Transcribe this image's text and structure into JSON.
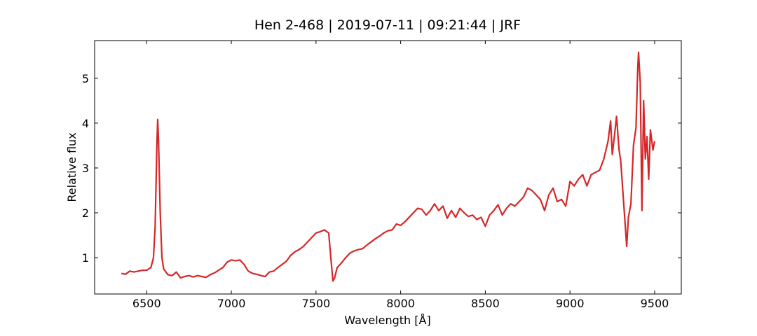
{
  "chart_data": {
    "type": "line",
    "title": "Hen 2-468 | 2019-07-11 | 09:21:44 | JRF",
    "xlabel": "Wavelength [Å]",
    "ylabel": "Relative flux",
    "xlim": [
      6192.5,
      9657.5
    ],
    "ylim": [
      0.19,
      5.84
    ],
    "xticks": [
      6500,
      7000,
      7500,
      8000,
      8500,
      9000,
      9500
    ],
    "yticks": [
      1,
      2,
      3,
      4,
      5
    ],
    "x": [
      6350,
      6375,
      6400,
      6425,
      6450,
      6475,
      6500,
      6525,
      6540,
      6550,
      6560,
      6565,
      6570,
      6580,
      6590,
      6600,
      6625,
      6650,
      6675,
      6700,
      6725,
      6750,
      6775,
      6800,
      6825,
      6850,
      6875,
      6900,
      6925,
      6950,
      6975,
      7000,
      7025,
      7050,
      7075,
      7100,
      7125,
      7150,
      7175,
      7200,
      7225,
      7250,
      7275,
      7300,
      7325,
      7350,
      7375,
      7400,
      7425,
      7450,
      7475,
      7500,
      7525,
      7550,
      7575,
      7590,
      7600,
      7610,
      7625,
      7650,
      7675,
      7700,
      7725,
      7750,
      7775,
      7800,
      7825,
      7850,
      7875,
      7900,
      7925,
      7950,
      7975,
      8000,
      8025,
      8050,
      8075,
      8100,
      8125,
      8150,
      8175,
      8200,
      8225,
      8250,
      8275,
      8300,
      8325,
      8350,
      8375,
      8400,
      8425,
      8450,
      8475,
      8500,
      8525,
      8550,
      8575,
      8600,
      8625,
      8650,
      8675,
      8700,
      8725,
      8750,
      8775,
      8800,
      8825,
      8850,
      8875,
      8900,
      8925,
      8950,
      8975,
      9000,
      9025,
      9050,
      9075,
      9100,
      9125,
      9150,
      9175,
      9200,
      9225,
      9240,
      9250,
      9265,
      9275,
      9290,
      9300,
      9310,
      9325,
      9335,
      9345,
      9360,
      9375,
      9390,
      9400,
      9405,
      9415,
      9425,
      9435,
      9445,
      9455,
      9465,
      9475,
      9490,
      9500
    ],
    "series": [
      {
        "color": "#d62728",
        "values": [
          0.65,
          0.63,
          0.7,
          0.68,
          0.7,
          0.72,
          0.72,
          0.78,
          1.0,
          1.7,
          3.5,
          4.08,
          3.6,
          2.0,
          1.0,
          0.75,
          0.62,
          0.6,
          0.68,
          0.55,
          0.58,
          0.6,
          0.57,
          0.6,
          0.58,
          0.56,
          0.62,
          0.66,
          0.72,
          0.78,
          0.9,
          0.95,
          0.93,
          0.95,
          0.85,
          0.7,
          0.65,
          0.63,
          0.6,
          0.58,
          0.68,
          0.7,
          0.78,
          0.85,
          0.92,
          1.05,
          1.13,
          1.18,
          1.25,
          1.35,
          1.45,
          1.55,
          1.58,
          1.62,
          1.55,
          0.9,
          0.48,
          0.55,
          0.78,
          0.88,
          1.0,
          1.1,
          1.15,
          1.18,
          1.2,
          1.28,
          1.35,
          1.42,
          1.48,
          1.55,
          1.6,
          1.62,
          1.75,
          1.72,
          1.8,
          1.9,
          2.0,
          2.1,
          2.08,
          1.95,
          2.05,
          2.2,
          2.05,
          2.15,
          1.88,
          2.05,
          1.9,
          2.1,
          2.0,
          1.92,
          1.95,
          1.85,
          1.9,
          1.7,
          1.95,
          2.05,
          2.18,
          1.95,
          2.1,
          2.2,
          2.15,
          2.25,
          2.35,
          2.55,
          2.5,
          2.4,
          2.3,
          2.05,
          2.4,
          2.55,
          2.25,
          2.3,
          2.15,
          2.7,
          2.6,
          2.75,
          2.85,
          2.6,
          2.85,
          2.9,
          2.95,
          3.2,
          3.6,
          4.05,
          3.3,
          3.8,
          4.15,
          3.4,
          3.15,
          2.6,
          1.8,
          1.25,
          1.9,
          2.2,
          3.5,
          3.9,
          5.2,
          5.58,
          4.9,
          2.05,
          4.5,
          3.2,
          3.7,
          2.75,
          3.85,
          3.4,
          3.6
        ]
      }
    ]
  }
}
